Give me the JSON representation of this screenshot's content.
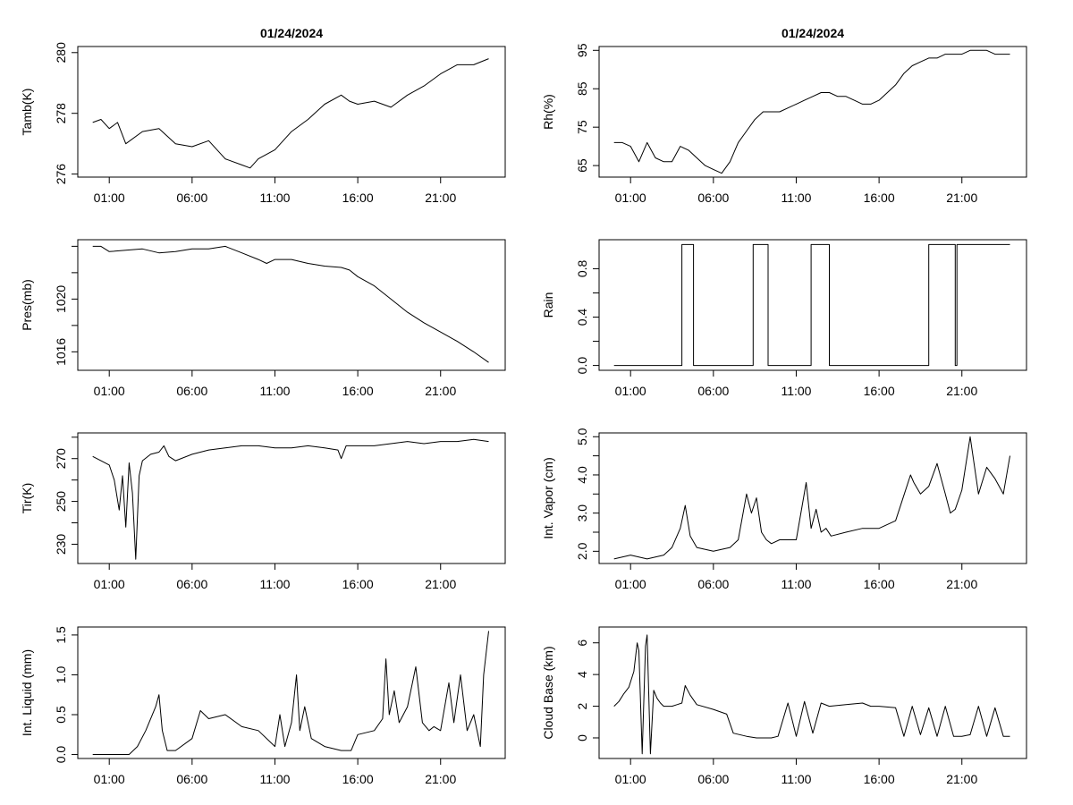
{
  "figure": {
    "titles": [
      "01/24/2024",
      "01/24/2024"
    ]
  },
  "chart_data": [
    {
      "type": "line",
      "ylabel": "Tamb(K)",
      "xlabel": "",
      "title": "01/24/2024",
      "x_ticks": [
        "01:00",
        "06:00",
        "11:00",
        "16:00",
        "21:00"
      ],
      "x_tick_hours": [
        1,
        6,
        11,
        16,
        21
      ],
      "xlim": [
        -0.9,
        24.9
      ],
      "ylim": [
        275.9,
        280.2
      ],
      "y_ticks": [
        276,
        278,
        280
      ],
      "y_tick_labels": [
        "276",
        "278",
        "280"
      ],
      "series": [
        {
          "name": "Tamb(K)",
          "x": [
            0,
            0.5,
            1,
            1.5,
            2,
            3,
            4,
            5,
            6,
            7,
            8,
            9,
            9.5,
            10,
            11,
            12,
            13,
            14,
            15,
            15.5,
            16,
            17,
            18,
            19,
            20,
            21,
            22,
            23,
            23.9
          ],
          "y": [
            277.7,
            277.8,
            277.5,
            277.7,
            277.0,
            277.4,
            277.5,
            277.0,
            276.9,
            277.1,
            276.5,
            276.3,
            276.2,
            276.5,
            276.8,
            277.4,
            277.8,
            278.3,
            278.6,
            278.4,
            278.3,
            278.4,
            278.2,
            278.6,
            278.9,
            279.3,
            279.6,
            279.6,
            279.8
          ]
        }
      ]
    },
    {
      "type": "line",
      "ylabel": "Rh(%)",
      "xlabel": "",
      "title": "01/24/2024",
      "x_ticks": [
        "01:00",
        "06:00",
        "11:00",
        "16:00",
        "21:00"
      ],
      "x_tick_hours": [
        1,
        6,
        11,
        16,
        21
      ],
      "xlim": [
        -0.9,
        24.9
      ],
      "ylim": [
        62,
        96
      ],
      "y_ticks": [
        65,
        75,
        85,
        95
      ],
      "y_tick_labels": [
        "65",
        "75",
        "85",
        "95"
      ],
      "series": [
        {
          "name": "Rh(%)",
          "x": [
            0,
            0.5,
            1,
            1.5,
            2,
            2.5,
            3,
            3.5,
            4,
            4.5,
            5,
            5.5,
            6,
            6.5,
            7,
            7.5,
            8,
            8.5,
            9,
            9.5,
            10,
            10.5,
            11,
            11.5,
            12,
            12.5,
            13,
            13.5,
            14,
            14.5,
            15,
            15.5,
            16,
            16.5,
            17,
            17.5,
            18,
            18.5,
            19,
            19.5,
            20,
            20.5,
            21,
            21.5,
            22,
            22.5,
            23,
            23.5,
            23.9
          ],
          "y": [
            71,
            71,
            70,
            66,
            71,
            67,
            66,
            66,
            70,
            69,
            67,
            65,
            64,
            63,
            66,
            71,
            74,
            77,
            79,
            79,
            79,
            80,
            81,
            82,
            83,
            84,
            84,
            83,
            83,
            82,
            81,
            81,
            82,
            84,
            86,
            89,
            91,
            92,
            93,
            93,
            94,
            94,
            94,
            95,
            95,
            95,
            94,
            94,
            94
          ]
        }
      ]
    },
    {
      "type": "line",
      "ylabel": "Pres(mb)",
      "xlabel": "",
      "title": "",
      "x_ticks": [
        "01:00",
        "06:00",
        "11:00",
        "16:00",
        "21:00"
      ],
      "x_tick_hours": [
        1,
        6,
        11,
        16,
        21
      ],
      "xlim": [
        -0.9,
        24.9
      ],
      "ylim": [
        1014.6,
        1024.5
      ],
      "y_ticks": [
        1016,
        1018,
        1020,
        1022,
        1024
      ],
      "y_tick_labels": [
        "1016",
        "",
        "1020",
        "",
        ""
      ],
      "series": [
        {
          "name": "Pres(mb)",
          "x": [
            0,
            0.5,
            1,
            2,
            3,
            4,
            5,
            6,
            7,
            8,
            9,
            10,
            10.5,
            11,
            12,
            13,
            14,
            15,
            15.5,
            16,
            17,
            18,
            19,
            20,
            21,
            22,
            23,
            23.9
          ],
          "y": [
            1024.0,
            1024.0,
            1023.6,
            1023.7,
            1023.8,
            1023.5,
            1023.6,
            1023.8,
            1023.8,
            1024.0,
            1023.5,
            1023.0,
            1022.7,
            1023.0,
            1023.0,
            1022.7,
            1022.5,
            1022.4,
            1022.2,
            1021.7,
            1021.0,
            1020.0,
            1019.0,
            1018.2,
            1017.5,
            1016.8,
            1016.0,
            1015.2
          ]
        }
      ]
    },
    {
      "type": "line",
      "ylabel": "Rain",
      "xlabel": "",
      "title": "",
      "x_ticks": [
        "01:00",
        "06:00",
        "11:00",
        "16:00",
        "21:00"
      ],
      "x_tick_hours": [
        1,
        6,
        11,
        16,
        21
      ],
      "xlim": [
        -0.9,
        24.9
      ],
      "ylim": [
        -0.04,
        1.04
      ],
      "y_ticks": [
        0.0,
        0.2,
        0.4,
        0.6,
        0.8
      ],
      "y_tick_labels": [
        "0.0",
        "",
        "0.4",
        "",
        "0.8"
      ],
      "series": [
        {
          "name": "Rain",
          "x": [
            0,
            4.1,
            4.1,
            4.8,
            4.8,
            8.4,
            8.4,
            9.3,
            9.3,
            11.9,
            11.9,
            13.0,
            13.0,
            19.0,
            19.0,
            20.6,
            20.6,
            20.7,
            20.7,
            23.9
          ],
          "y": [
            0,
            0,
            1,
            1,
            0,
            0,
            1,
            1,
            0,
            0,
            1,
            1,
            0,
            0,
            1,
            1,
            0,
            0,
            1,
            1
          ]
        }
      ]
    },
    {
      "type": "line",
      "ylabel": "Tir(K)",
      "xlabel": "",
      "title": "",
      "x_ticks": [
        "01:00",
        "06:00",
        "11:00",
        "16:00",
        "21:00"
      ],
      "x_tick_hours": [
        1,
        6,
        11,
        16,
        21
      ],
      "xlim": [
        -0.9,
        24.9
      ],
      "ylim": [
        221,
        282
      ],
      "y_ticks": [
        230,
        240,
        250,
        260,
        270,
        280
      ],
      "y_tick_labels": [
        "230",
        "",
        "250",
        "",
        "270",
        ""
      ],
      "series": [
        {
          "name": "Tir(K)",
          "x": [
            0,
            0.5,
            1,
            1.3,
            1.6,
            1.8,
            2.0,
            2.2,
            2.4,
            2.6,
            2.8,
            3,
            3.5,
            4,
            4.3,
            4.6,
            5,
            6,
            7,
            8,
            9,
            10,
            11,
            12,
            13,
            14,
            14.8,
            15.0,
            15.3,
            16,
            17,
            18,
            19,
            20,
            21,
            22,
            23,
            23.9
          ],
          "y": [
            271,
            269,
            267,
            260,
            246,
            262,
            238,
            268,
            254,
            223,
            262,
            269,
            272,
            273,
            276,
            271,
            269,
            272,
            274,
            275,
            276,
            276,
            275,
            275,
            276,
            275,
            274,
            270,
            276,
            276,
            276,
            277,
            278,
            277,
            278,
            278,
            279,
            278
          ]
        }
      ]
    },
    {
      "type": "line",
      "ylabel": "Int. Vapor (cm)",
      "xlabel": "",
      "title": "",
      "x_ticks": [
        "01:00",
        "06:00",
        "11:00",
        "16:00",
        "21:00"
      ],
      "x_tick_hours": [
        1,
        6,
        11,
        16,
        21
      ],
      "xlim": [
        -0.9,
        24.9
      ],
      "ylim": [
        1.68,
        5.1
      ],
      "y_ticks": [
        2.0,
        2.5,
        3.0,
        3.5,
        4.0,
        4.5,
        5.0
      ],
      "y_tick_labels": [
        "2.0",
        "",
        "3.0",
        "",
        "4.0",
        "",
        "5.0"
      ],
      "series": [
        {
          "name": "Int. Vapor (cm)",
          "x": [
            0,
            1,
            2,
            3,
            3.5,
            4,
            4.3,
            4.6,
            5,
            6,
            7,
            7.5,
            8,
            8.3,
            8.6,
            8.9,
            9.2,
            9.5,
            10,
            11,
            11.6,
            11.9,
            12.2,
            12.5,
            12.8,
            13.1,
            14,
            15,
            16,
            17,
            17.9,
            18.1,
            18.5,
            19,
            19.5,
            20,
            20.3,
            20.6,
            21,
            21.5,
            22,
            22.5,
            23,
            23.5,
            23.9
          ],
          "y": [
            1.8,
            1.9,
            1.8,
            1.9,
            2.1,
            2.6,
            3.2,
            2.4,
            2.1,
            2.0,
            2.1,
            2.3,
            3.5,
            3.0,
            3.4,
            2.5,
            2.3,
            2.2,
            2.3,
            2.3,
            3.8,
            2.6,
            3.1,
            2.5,
            2.6,
            2.4,
            2.5,
            2.6,
            2.6,
            2.8,
            4.0,
            3.8,
            3.5,
            3.7,
            4.3,
            3.5,
            3.0,
            3.1,
            3.6,
            5.0,
            3.5,
            4.2,
            3.9,
            3.5,
            4.5
          ]
        }
      ]
    },
    {
      "type": "line",
      "ylabel": "Int. Liquid (mm)",
      "xlabel": "",
      "title": "",
      "x_ticks": [
        "01:00",
        "06:00",
        "11:00",
        "16:00",
        "21:00"
      ],
      "x_tick_hours": [
        1,
        6,
        11,
        16,
        21
      ],
      "xlim": [
        -0.9,
        24.9
      ],
      "ylim": [
        -0.05,
        1.6
      ],
      "y_ticks": [
        0.0,
        0.5,
        1.0,
        1.5
      ],
      "y_tick_labels": [
        "0.0",
        "0.5",
        "1.0",
        "1.5"
      ],
      "series": [
        {
          "name": "Int. Liquid (mm)",
          "x": [
            0,
            1.5,
            2.2,
            2.7,
            3.2,
            3.8,
            4.0,
            4.2,
            4.5,
            5,
            6,
            6.5,
            7,
            8,
            9,
            10,
            11,
            11.3,
            11.6,
            12,
            12.3,
            12.5,
            12.8,
            13.2,
            14,
            15,
            15.6,
            16,
            17,
            17.5,
            17.7,
            17.9,
            18.2,
            18.5,
            19,
            19.5,
            19.9,
            20.3,
            20.6,
            21,
            21.5,
            21.8,
            22.2,
            22.6,
            23.0,
            23.4,
            23.6,
            23.9
          ],
          "y": [
            0,
            0,
            0,
            0.1,
            0.3,
            0.6,
            0.75,
            0.3,
            0.05,
            0.05,
            0.2,
            0.55,
            0.45,
            0.5,
            0.35,
            0.3,
            0.1,
            0.5,
            0.1,
            0.4,
            1.0,
            0.3,
            0.6,
            0.2,
            0.1,
            0.05,
            0.05,
            0.25,
            0.3,
            0.45,
            1.2,
            0.5,
            0.8,
            0.4,
            0.6,
            1.1,
            0.4,
            0.3,
            0.35,
            0.3,
            0.9,
            0.4,
            1.0,
            0.3,
            0.5,
            0.1,
            1.0,
            1.55
          ]
        }
      ]
    },
    {
      "type": "line",
      "ylabel": "Cloud Base (km)",
      "xlabel": "",
      "title": "",
      "x_ticks": [
        "01:00",
        "06:00",
        "11:00",
        "16:00",
        "21:00"
      ],
      "x_tick_hours": [
        1,
        6,
        11,
        16,
        21
      ],
      "xlim": [
        -0.9,
        24.9
      ],
      "ylim": [
        -1.3,
        7.0
      ],
      "y_ticks": [
        0,
        2,
        4,
        6
      ],
      "y_tick_labels": [
        "0",
        "2",
        "4",
        "6"
      ],
      "series": [
        {
          "name": "Cloud Base (km)",
          "x": [
            0,
            0.3,
            0.6,
            0.9,
            1.2,
            1.4,
            1.5,
            1.7,
            1.9,
            2.0,
            2.2,
            2.4,
            2.6,
            2.8,
            3.0,
            3.5,
            3.8,
            4.1,
            4.3,
            4.6,
            5,
            6,
            6.8,
            7.2,
            8,
            8.6,
            9.5,
            9.9,
            10.5,
            11.0,
            11.5,
            12.0,
            12.5,
            13,
            14,
            15,
            15.5,
            16,
            17,
            17.5,
            18,
            18.5,
            19,
            19.5,
            20,
            20.5,
            21,
            21.5,
            22,
            22.5,
            23,
            23.5,
            23.9
          ],
          "y": [
            2.0,
            2.3,
            2.8,
            3.2,
            4.2,
            6.0,
            5.5,
            -1.0,
            5.8,
            6.5,
            -1.0,
            3.0,
            2.5,
            2.2,
            2.0,
            2.0,
            2.1,
            2.2,
            3.3,
            2.7,
            2.1,
            1.8,
            1.5,
            0.3,
            0.1,
            0,
            0,
            0.1,
            2.2,
            0.1,
            2.3,
            0.3,
            2.2,
            2.0,
            2.1,
            2.2,
            2.0,
            2.0,
            1.9,
            0.1,
            2.0,
            0.2,
            1.9,
            0.1,
            2.0,
            0.1,
            0.1,
            0.2,
            2.0,
            0.1,
            1.9,
            0.1,
            0.1
          ]
        }
      ]
    }
  ]
}
